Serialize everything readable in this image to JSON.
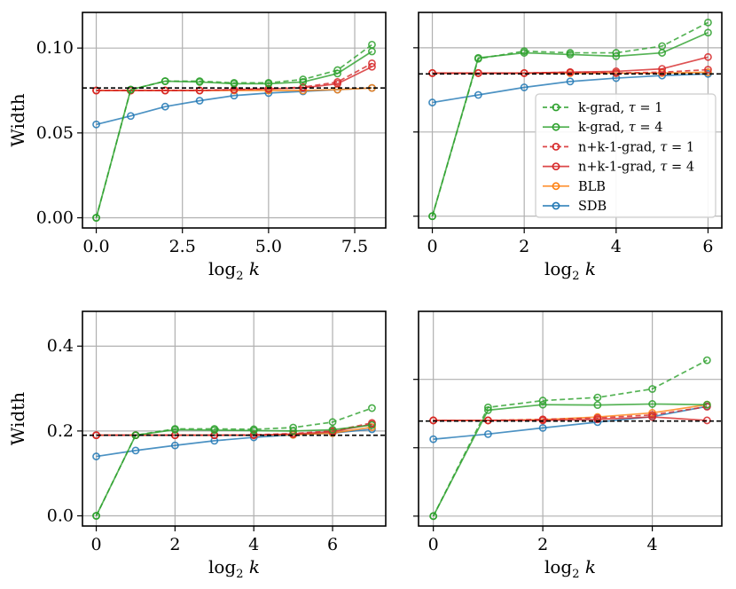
{
  "chart_data": [
    {
      "type": "line",
      "panel": "top-left",
      "xlabel": "log",
      "xlabel_sub": "2",
      "xlabel_var": "k",
      "ylabel": "Width",
      "xlim": [
        -0.4,
        8.4
      ],
      "ylim": [
        -0.006,
        0.121
      ],
      "xticks": [
        0.0,
        2.5,
        5.0,
        7.5
      ],
      "xtick_labels": [
        "0.0",
        "2.5",
        "5.0",
        "7.5"
      ],
      "yticks": [
        0.0,
        0.05,
        0.1
      ],
      "ytick_labels": [
        "0.00",
        "0.05",
        "0.10"
      ],
      "reference_line": 0.0765,
      "grid": true,
      "x": [
        0,
        1,
        2,
        3,
        4,
        5,
        6,
        7,
        8
      ],
      "series": [
        {
          "key": "kgrad-tau1",
          "values": [
            0.0,
            0.0755,
            0.0805,
            0.0805,
            0.0795,
            0.0795,
            0.0815,
            0.087,
            0.102
          ]
        },
        {
          "key": "kgrad-tau4",
          "values": [
            0.0,
            0.0755,
            0.0805,
            0.08,
            0.079,
            0.079,
            0.08,
            0.085,
            0.098
          ]
        },
        {
          "key": "nk1grad-tau1",
          "values": [
            0.075,
            0.075,
            0.075,
            0.075,
            0.0755,
            0.076,
            0.077,
            0.08,
            0.091
          ]
        },
        {
          "key": "nk1grad-tau4",
          "values": [
            0.075,
            0.075,
            0.075,
            0.075,
            0.0755,
            0.076,
            0.0765,
            0.079,
            0.089
          ]
        },
        {
          "key": "blb",
          "values": [
            0.075,
            0.075,
            0.075,
            0.075,
            0.075,
            0.075,
            0.075,
            0.0755,
            0.0765
          ]
        },
        {
          "key": "sdb",
          "values": [
            0.055,
            0.06,
            0.0655,
            0.069,
            0.072,
            0.0735,
            0.0745,
            0.0755,
            0.0765
          ]
        }
      ]
    },
    {
      "type": "line",
      "panel": "top-right",
      "xlabel": "log",
      "xlabel_sub": "2",
      "xlabel_var": "k",
      "ylabel": "",
      "xlim": [
        -0.3,
        6.3
      ],
      "ylim": [
        -0.007,
        0.121
      ],
      "xticks": [
        0,
        2,
        4,
        6
      ],
      "xtick_labels": [
        "0",
        "2",
        "4",
        "6"
      ],
      "yticks": [
        0.0,
        0.05,
        0.1
      ],
      "ytick_labels": [],
      "reference_line": 0.0845,
      "grid": true,
      "x": [
        0,
        1,
        2,
        3,
        4,
        5,
        6
      ],
      "series": [
        {
          "key": "kgrad-tau1",
          "values": [
            0.0,
            0.0935,
            0.098,
            0.097,
            0.097,
            0.101,
            0.115
          ]
        },
        {
          "key": "kgrad-tau4",
          "values": [
            0.0,
            0.094,
            0.097,
            0.096,
            0.095,
            0.097,
            0.109
          ]
        },
        {
          "key": "nk1grad-tau1",
          "values": [
            0.085,
            0.085,
            0.085,
            0.0855,
            0.085,
            0.0855,
            0.087
          ]
        },
        {
          "key": "nk1grad-tau4",
          "values": [
            0.085,
            0.085,
            0.085,
            0.0855,
            0.086,
            0.0875,
            0.0945
          ]
        },
        {
          "key": "blb",
          "values": [
            0.085,
            0.085,
            0.085,
            0.085,
            0.085,
            0.085,
            0.0855
          ]
        },
        {
          "key": "sdb",
          "values": [
            0.0675,
            0.072,
            0.0765,
            0.08,
            0.082,
            0.0835,
            0.0845
          ]
        }
      ]
    },
    {
      "type": "line",
      "panel": "bottom-left",
      "xlabel": "log",
      "xlabel_sub": "2",
      "xlabel_var": "k",
      "ylabel": "Width",
      "xlim": [
        -0.35,
        7.35
      ],
      "ylim": [
        -0.024,
        0.482
      ],
      "xticks": [
        0,
        2,
        4,
        6
      ],
      "xtick_labels": [
        "0",
        "2",
        "4",
        "6"
      ],
      "yticks": [
        0.0,
        0.2,
        0.4
      ],
      "ytick_labels": [
        "0.0",
        "0.2",
        "0.4"
      ],
      "reference_line": 0.19,
      "grid": true,
      "x": [
        0,
        1,
        2,
        3,
        4,
        5,
        6,
        7
      ],
      "series": [
        {
          "key": "kgrad-tau1",
          "values": [
            0.0,
            0.19,
            0.205,
            0.205,
            0.204,
            0.208,
            0.221,
            0.254
          ]
        },
        {
          "key": "kgrad-tau4",
          "values": [
            0.0,
            0.19,
            0.203,
            0.202,
            0.201,
            0.2,
            0.203,
            0.214
          ]
        },
        {
          "key": "nk1grad-tau1",
          "values": [
            0.19,
            0.19,
            0.19,
            0.19,
            0.191,
            0.194,
            0.2,
            0.219
          ]
        },
        {
          "key": "nk1grad-tau4",
          "values": [
            0.19,
            0.19,
            0.19,
            0.19,
            0.19,
            0.193,
            0.198,
            0.216
          ]
        },
        {
          "key": "blb",
          "values": [
            0.19,
            0.19,
            0.19,
            0.19,
            0.19,
            0.191,
            0.195,
            0.209
          ]
        },
        {
          "key": "sdb",
          "values": [
            0.14,
            0.154,
            0.166,
            0.177,
            0.185,
            0.191,
            0.195,
            0.204
          ]
        }
      ]
    },
    {
      "type": "line",
      "panel": "bottom-right",
      "xlabel": "log",
      "xlabel_sub": "2",
      "xlabel_var": "k",
      "ylabel": "",
      "xlim": [
        -0.27,
        5.27
      ],
      "ylim": [
        -0.029,
        0.599
      ],
      "xticks": [
        0,
        2,
        4
      ],
      "xtick_labels": [
        "0",
        "2",
        "4"
      ],
      "yticks": [
        0.0,
        0.2,
        0.4
      ],
      "ytick_labels": [],
      "reference_line": 0.278,
      "grid": true,
      "x": [
        0,
        1,
        2,
        3,
        4,
        5
      ],
      "series": [
        {
          "key": "kgrad-tau1",
          "values": [
            0.0,
            0.318,
            0.338,
            0.347,
            0.372,
            0.456
          ]
        },
        {
          "key": "kgrad-tau4",
          "values": [
            0.0,
            0.31,
            0.326,
            0.325,
            0.328,
            0.326
          ]
        },
        {
          "key": "nk1grad-tau1",
          "values": [
            0.28,
            0.28,
            0.283,
            0.287,
            0.296,
            0.32
          ]
        },
        {
          "key": "nk1grad-tau4",
          "values": [
            0.28,
            0.28,
            0.28,
            0.283,
            0.29,
            0.28
          ]
        },
        {
          "key": "blb",
          "values": [
            0.28,
            0.28,
            0.282,
            0.29,
            0.302,
            0.326
          ]
        },
        {
          "key": "sdb",
          "values": [
            0.225,
            0.24,
            0.258,
            0.275,
            0.291,
            0.321
          ]
        }
      ]
    }
  ],
  "legend": {
    "placement": "top-right panel, lower-right",
    "entries": [
      {
        "key": "kgrad-tau1",
        "name": "k-grad, ",
        "tau_value": "1",
        "color": "#2ca02c",
        "dashed": true
      },
      {
        "key": "kgrad-tau4",
        "name": "k-grad, ",
        "tau_value": "4",
        "color": "#2ca02c",
        "dashed": false
      },
      {
        "key": "nk1grad-tau1",
        "name": "n+k-1-grad, ",
        "tau_value": "1",
        "color": "#d62728",
        "dashed": true
      },
      {
        "key": "nk1grad-tau4",
        "name": "n+k-1-grad, ",
        "tau_value": "4",
        "color": "#d62728",
        "dashed": false
      },
      {
        "key": "blb",
        "name": "BLB",
        "tau_value": "",
        "color": "#ff7f0e",
        "dashed": false
      },
      {
        "key": "sdb",
        "name": "SDB",
        "tau_value": "",
        "color": "#1f77b4",
        "dashed": false
      }
    ]
  }
}
